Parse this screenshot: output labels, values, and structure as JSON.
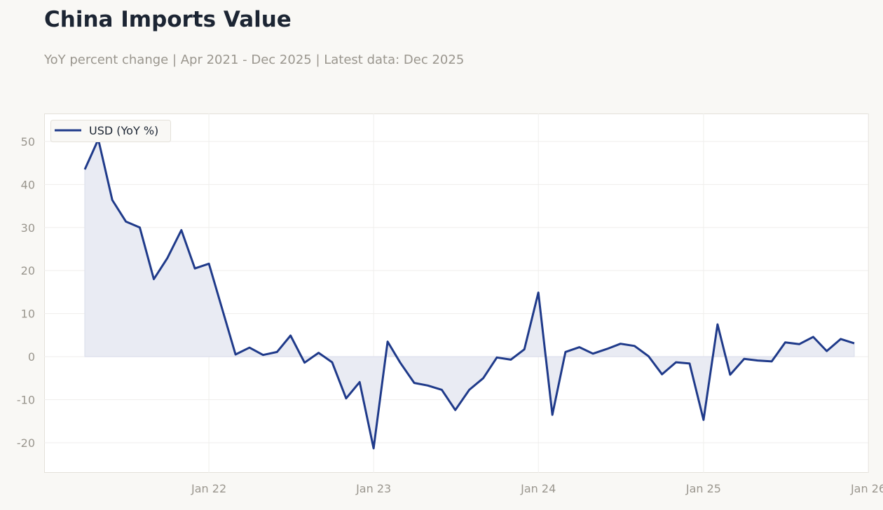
{
  "title": "China Imports Value",
  "subtitle": "YoY percent change | Apr 2021 - Dec 2025 | Latest data: Dec 2025",
  "colors": {
    "line": "#1f3a8a",
    "fill": "#e9ebf3",
    "background": "#f9f8f5"
  },
  "chart_data": {
    "type": "area",
    "title": "China Imports Value",
    "xlabel": "",
    "ylabel": "",
    "ylim": [
      -27,
      56.5
    ],
    "xlim": [
      "2021-01-01",
      "2026-01-01"
    ],
    "grid": true,
    "legend": "top-left",
    "yticks": [
      -20,
      -10,
      0,
      10,
      20,
      30,
      40,
      50
    ],
    "xticks": [
      {
        "date": "2022-01-01",
        "label": "Jan 22"
      },
      {
        "date": "2023-01-01",
        "label": "Jan 23"
      },
      {
        "date": "2024-01-01",
        "label": "Jan 24"
      },
      {
        "date": "2025-01-01",
        "label": "Jan 25"
      },
      {
        "date": "2026-01-01",
        "label": "Jan 26"
      }
    ],
    "series": [
      {
        "name": "USD (YoY %)",
        "points": [
          [
            "2021-04",
            43.5
          ],
          [
            "2021-05",
            50.5
          ],
          [
            "2021-06",
            36.4
          ],
          [
            "2021-07",
            31.4
          ],
          [
            "2021-08",
            30.0
          ],
          [
            "2021-09",
            18.0
          ],
          [
            "2021-10",
            22.9
          ],
          [
            "2021-11",
            29.4
          ],
          [
            "2021-12",
            20.5
          ],
          [
            "2022-01",
            21.6
          ],
          [
            "2022-03",
            0.5
          ],
          [
            "2022-04",
            2.1
          ],
          [
            "2022-05",
            0.4
          ],
          [
            "2022-06",
            1.1
          ],
          [
            "2022-07",
            4.9
          ],
          [
            "2022-08",
            -1.4
          ],
          [
            "2022-09",
            0.9
          ],
          [
            "2022-10",
            -1.3
          ],
          [
            "2022-11",
            -9.7
          ],
          [
            "2022-12",
            -5.9
          ],
          [
            "2023-01",
            -21.3
          ],
          [
            "2023-02",
            3.5
          ],
          [
            "2023-03",
            -1.4
          ],
          [
            "2023-04",
            -6.1
          ],
          [
            "2023-05",
            -6.7
          ],
          [
            "2023-06",
            -7.7
          ],
          [
            "2023-07",
            -12.4
          ],
          [
            "2023-08",
            -7.7
          ],
          [
            "2023-09",
            -5.0
          ],
          [
            "2023-10",
            -0.2
          ],
          [
            "2023-11",
            -0.7
          ],
          [
            "2023-12",
            1.7
          ],
          [
            "2024-01",
            14.9
          ],
          [
            "2024-02",
            -13.5
          ],
          [
            "2024-03",
            1.1
          ],
          [
            "2024-04",
            2.2
          ],
          [
            "2024-05",
            0.7
          ],
          [
            "2024-06",
            1.8
          ],
          [
            "2024-07",
            3.0
          ],
          [
            "2024-08",
            2.5
          ],
          [
            "2024-09",
            0.1
          ],
          [
            "2024-10",
            -4.1
          ],
          [
            "2024-11",
            -1.3
          ],
          [
            "2024-12",
            -1.6
          ],
          [
            "2025-01",
            -14.7
          ],
          [
            "2025-02",
            7.5
          ],
          [
            "2025-03",
            -4.2
          ],
          [
            "2025-04",
            -0.5
          ],
          [
            "2025-05",
            -0.9
          ],
          [
            "2025-06",
            -1.1
          ],
          [
            "2025-07",
            3.3
          ],
          [
            "2025-08",
            2.9
          ],
          [
            "2025-09",
            4.6
          ],
          [
            "2025-10",
            1.3
          ],
          [
            "2025-11",
            4.1
          ],
          [
            "2025-12",
            3.1
          ]
        ]
      }
    ]
  }
}
